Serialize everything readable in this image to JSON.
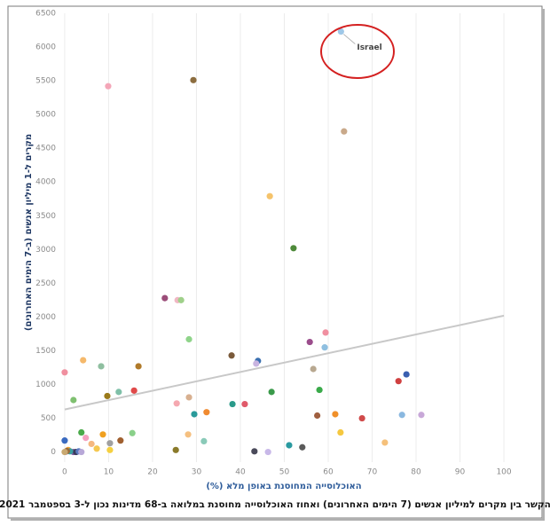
{
  "chart_data": {
    "type": "scatter",
    "title": "הקשר בין מקרים למיליון אנשים (7 הימים האחרונים) ואחוז האוכלוסייה מחוסנת במלואה ב-68 מדינות נכון ל-3 בספטמבר 2021",
    "x_label": "האוכלוסייה המחוסנת באופן מלא (%)",
    "y_label": "מקרים ל-1 מיליון אנשים (ב-7 הימים האחרונים)",
    "annotation": {
      "text": "Israel",
      "x": 62.9,
      "y": 6230
    },
    "xlim": [
      -1.6,
      101
    ],
    "ylim": [
      -150,
      6500
    ],
    "xticks": [
      0,
      10,
      20,
      30,
      40,
      50,
      60,
      70,
      80,
      90,
      100
    ],
    "yticks": [
      0,
      500,
      1000,
      1500,
      2000,
      2500,
      3000,
      3500,
      4000,
      4500,
      5000,
      5500,
      6000,
      6500
    ],
    "grid": "x",
    "trendline": {
      "color": "#c8c8c8",
      "x": [
        0,
        100
      ],
      "y": [
        630,
        2020
      ]
    },
    "x": [
      62.9,
      9.9,
      29.3,
      63.6,
      46.7,
      52.1,
      22.8,
      25.7,
      26.5,
      28.3,
      59.4,
      55.8,
      59.2,
      4.2,
      8.3,
      16.8,
      38.0,
      44.0,
      43.6,
      56.6,
      77.8,
      76.0,
      0,
      2.0,
      9.7,
      12.3,
      15.8,
      25.5,
      28.3,
      29.5,
      32.3,
      38.2,
      41.0,
      47.1,
      58.0,
      57.5,
      61.6,
      67.7,
      76.8,
      81.2,
      62.8,
      72.9,
      51.1,
      54.1,
      43.2,
      46.3,
      28.1,
      31.7,
      25.3,
      15.4,
      12.7,
      10.3,
      10.3,
      8.7,
      6.1,
      7.3,
      4.8,
      3.8,
      0,
      0.8,
      2.0,
      2.6,
      0.2,
      1.2,
      3.2,
      0.5,
      3.8,
      0
    ],
    "y": [
      6230,
      5420,
      5510,
      4750,
      3790,
      3020,
      2280,
      2250,
      2250,
      1670,
      1770,
      1630,
      1550,
      1360,
      1270,
      1270,
      1430,
      1350,
      1310,
      1230,
      1150,
      1050,
      1180,
      770,
      830,
      890,
      910,
      720,
      810,
      560,
      590,
      710,
      710,
      890,
      920,
      540,
      560,
      500,
      550,
      550,
      290,
      140,
      100,
      70,
      10,
      0,
      260,
      160,
      30,
      280,
      170,
      130,
      30,
      260,
      120,
      50,
      210,
      290,
      170,
      30,
      0,
      0,
      0,
      10,
      10,
      15,
      0,
      0
    ],
    "colors": [
      "#9fc8e8",
      "#f4a6b8",
      "#8c6d3f",
      "#c9a98a",
      "#f5c36b",
      "#4e8a3a",
      "#9b4d79",
      "#f0b7c4",
      "#9fd08a",
      "#8fd48a",
      "#f08fa0",
      "#9b4d8c",
      "#8fbfe0",
      "#f5b96b",
      "#8fbfa0",
      "#b07a2a",
      "#7a5a3a",
      "#3a6fb0",
      "#c8b4e0",
      "#b8a890",
      "#3a5fb0",
      "#d04040",
      "#f08f9f",
      "#7fc070",
      "#9a7a1a",
      "#7fc0a8",
      "#e04a4a",
      "#f5a8b0",
      "#d8b090",
      "#2a9a9a",
      "#f08a30",
      "#2a9a8a",
      "#e05a6a",
      "#3a9a4a",
      "#3aaa4a",
      "#a06040",
      "#f0902a",
      "#d04a4a",
      "#8ab8e0",
      "#c8a8d8",
      "#f5c840",
      "#f5c07a",
      "#2a9aa0",
      "#5a5a5a",
      "#4a4a5a",
      "#c8b8e8",
      "#f5c080",
      "#8acab8",
      "#8a7a2a",
      "#8ad08a",
      "#a06030",
      "#a0a0a0",
      "#f5d040",
      "#f0a020",
      "#f5b880",
      "#f5c850",
      "#f5a0c0",
      "#4aaa4a",
      "#3a6ac0",
      "#f0a030",
      "#7a5aa0",
      "#3a3a5a",
      "#c0b0e0",
      "#3aa0a0",
      "#5a7ac0",
      "#9a6a3a",
      "#b8a8d8",
      "#c8a870"
    ]
  }
}
